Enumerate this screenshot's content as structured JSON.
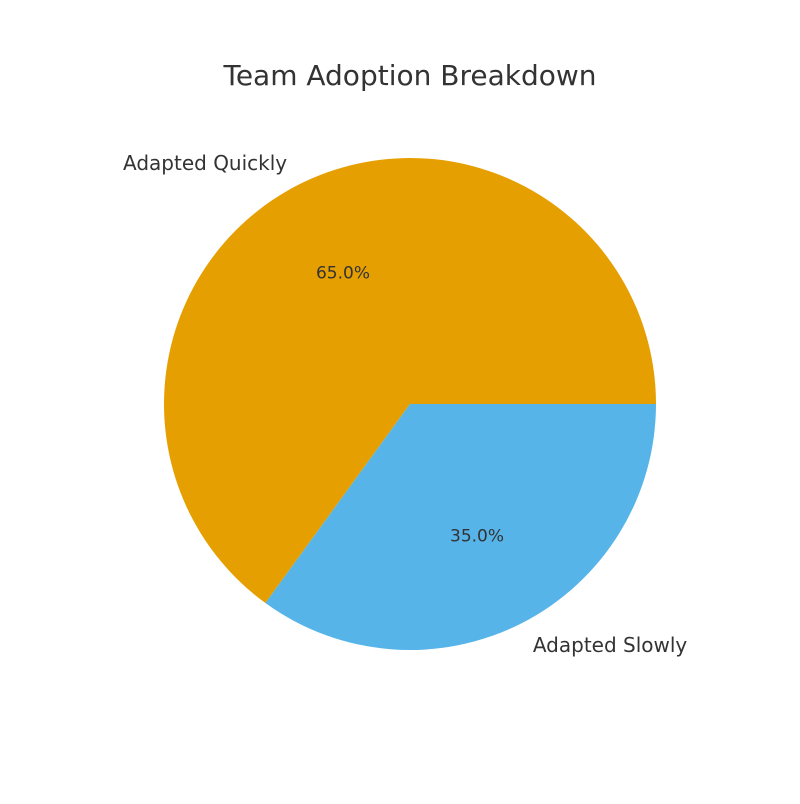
{
  "chart_data": {
    "type": "pie",
    "title": "Team Adoption Breakdown",
    "categories": [
      "Adapted Quickly",
      "Adapted Slowly"
    ],
    "values": [
      65.0,
      35.0
    ],
    "percent_labels": [
      "65.0%",
      "35.0%"
    ],
    "colors": [
      "#E69F00",
      "#56B4E9"
    ],
    "start_angle": 0,
    "direction": "counterclockwise"
  }
}
